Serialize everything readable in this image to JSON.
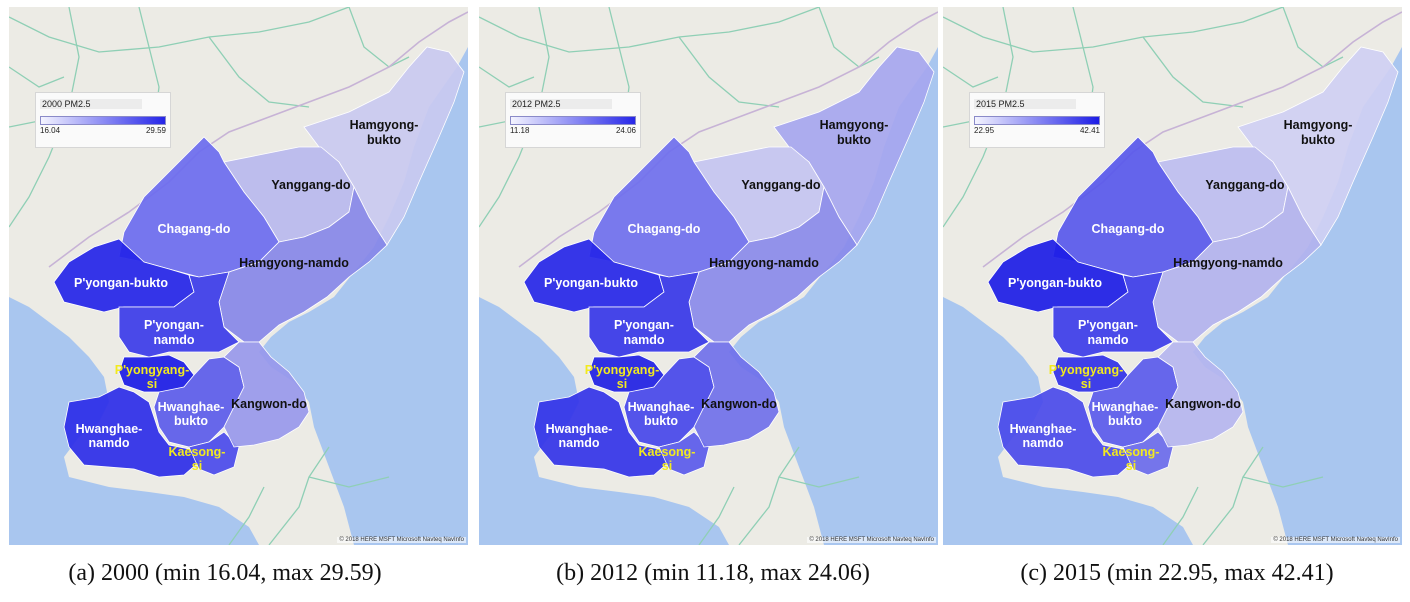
{
  "colors": {
    "sea": "#a9c6ef",
    "land": "#ecebe5",
    "road": "#8fcfb5",
    "border": "#c7b3d6",
    "white_label": "#ffffff",
    "black_label": "#111111",
    "yellow_label": "#f2ea1e"
  },
  "attribution": "© 2018 HERE MSFT Microsoft Navteq NavInfo",
  "panels": [
    {
      "caption": "(a) 2000 (min 16.04, max 29.59)",
      "legend": {
        "title": "2000 PM2.5",
        "min": "16.04",
        "max": "29.59"
      },
      "region_colors": {
        "hamgyong_bukto": "#c9c9f0",
        "yanggang_do": "#b8b8ee",
        "chagang_do": "#6b6bef",
        "hamgyong_namdo": "#8787e8",
        "pyongan_bukto": "#2424e8",
        "pyongan_namdo": "#3b3be9",
        "pyongyang_si": "#1a1ae6",
        "hwanghae_bukto": "#5b5bea",
        "hwanghae_namdo": "#2c2ce8",
        "kaesong_si": "#4a4aeb",
        "kangwon_do": "#9898ec"
      }
    },
    {
      "caption": "(b) 2012 (min 11.18, max 24.06)",
      "legend": {
        "title": "2012 PM2.5",
        "min": "11.18",
        "max": "24.06"
      },
      "region_colors": {
        "hamgyong_bukto": "#a6a6ef",
        "yanggang_do": "#c4c4f1",
        "chagang_do": "#6f6fee",
        "hamgyong_namdo": "#8a8aea",
        "pyongan_bukto": "#2626e8",
        "pyongan_namdo": "#3636e8",
        "pyongyang_si": "#2020e4",
        "hwanghae_bukto": "#4646ea",
        "hwanghae_namdo": "#3333e8",
        "kaesong_si": "#5a5aeb",
        "kangwon_do": "#7070ea"
      }
    },
    {
      "caption": "(c) 2015 (min 22.95, max 42.41)",
      "legend": {
        "title": "2015 PM2.5",
        "min": "22.95",
        "max": "42.41"
      },
      "region_colors": {
        "hamgyong_bukto": "#cfcff3",
        "yanggang_do": "#bdbdf0",
        "chagang_do": "#5858ec",
        "hamgyong_namdo": "#b2b2ee",
        "pyongan_bukto": "#1c1ce6",
        "pyongan_namdo": "#3c3ce9",
        "pyongyang_si": "#3030e8",
        "hwanghae_bukto": "#5a5aeb",
        "hwanghae_namdo": "#4a4aea",
        "kaesong_si": "#6a6aec",
        "kangwon_do": "#b5b5ef"
      }
    }
  ],
  "region_labels": {
    "hamgyong_bukto": [
      "Hamgyong-",
      "bukto"
    ],
    "yanggang_do": [
      "Yanggang-do"
    ],
    "chagang_do": [
      "Chagang-do"
    ],
    "hamgyong_namdo": [
      "Hamgyong-namdo"
    ],
    "pyongan_bukto": [
      "P'yongan-bukto"
    ],
    "pyongan_namdo": [
      "P'yongan-",
      "namdo"
    ],
    "pyongyang_si": [
      "P'yongyang-",
      "si"
    ],
    "hwanghae_bukto": [
      "Hwanghae-",
      "bukto"
    ],
    "hwanghae_namdo": [
      "Hwanghae-",
      "namdo"
    ],
    "kaesong_si": [
      "Kaesong-",
      "si"
    ],
    "kangwon_do": [
      "Kangwon-do"
    ]
  }
}
